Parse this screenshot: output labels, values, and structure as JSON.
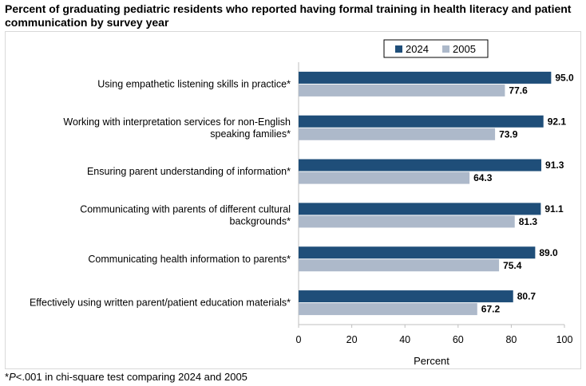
{
  "title": "Percent of graduating pediatric residents who reported having formal training in health literacy and patient communication by survey year",
  "footnote": {
    "star": "*",
    "p": "P",
    "rest": "<.001 in chi-square test comparing 2024 and 2005"
  },
  "chart_data": {
    "type": "bar",
    "orientation": "horizontal",
    "categories": [
      [
        "Using empathetic listening skills in practice*"
      ],
      [
        "Working with interpretation services for non-English",
        "speaking families*"
      ],
      [
        "Ensuring parent understanding of information*"
      ],
      [
        "Communicating with parents of different cultural",
        "backgrounds*"
      ],
      [
        "Communicating health information to parents*"
      ],
      [
        "Effectively using written parent/patient education materials*"
      ]
    ],
    "series": [
      {
        "name": "2024",
        "color": "#1f4e79",
        "values": [
          95.0,
          92.1,
          91.3,
          91.1,
          89.0,
          80.7
        ]
      },
      {
        "name": "2005",
        "color": "#adb9ca",
        "values": [
          77.6,
          73.9,
          64.3,
          81.3,
          75.4,
          67.2
        ]
      }
    ],
    "value_labels": {
      "2024": [
        "95.0",
        "92.1",
        "91.3",
        "91.1",
        "89.0",
        "80.7"
      ],
      "2005": [
        "77.6",
        "73.9",
        "64.3",
        "81.3",
        "75.4",
        "67.2"
      ]
    },
    "xlabel": "Percent",
    "xlim": [
      0,
      100
    ],
    "xticks": [
      0,
      20,
      40,
      60,
      80,
      100
    ],
    "grid": false,
    "legend": "top-right"
  }
}
